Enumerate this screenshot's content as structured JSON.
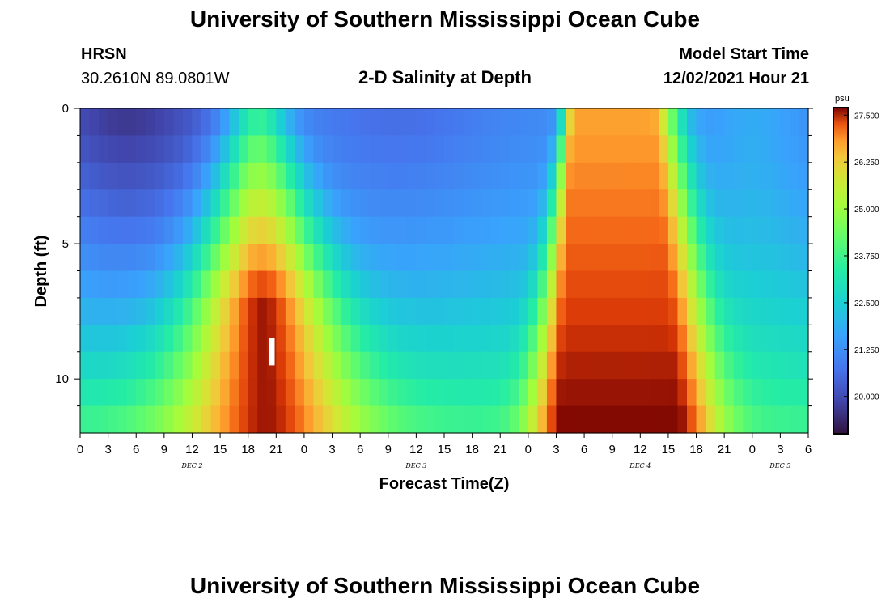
{
  "header": {
    "title": "University of Southern Mississippi Ocean Cube",
    "station": "HRSN",
    "coords": "30.2610N  89.0801W",
    "subtitle": "2-D Salinity at Depth",
    "start_label": "Model Start Time",
    "start_value": "12/02/2021 Hour 21"
  },
  "footer": {
    "title": "University of Southern Mississippi Ocean Cube"
  },
  "chart_data": {
    "type": "heatmap",
    "title": "2-D Salinity at Depth",
    "xlabel": "Forecast Time(Z)",
    "ylabel": "Depth (ft)",
    "x_start_hour": 0,
    "x_end_hour": 78,
    "x_step_hours": 3,
    "x_tick_labels": [
      "0",
      "3",
      "6",
      "9",
      "12",
      "15",
      "18",
      "21",
      "0",
      "3",
      "6",
      "9",
      "12",
      "15",
      "18",
      "21",
      "0",
      "3",
      "6",
      "9",
      "12",
      "15",
      "18",
      "21",
      "0",
      "3",
      "6"
    ],
    "day_labels": [
      {
        "label": "DEC 2",
        "hour": 12
      },
      {
        "label": "DEC 3",
        "hour": 36
      },
      {
        "label": "DEC 4",
        "hour": 60
      },
      {
        "label": "DEC 5",
        "hour": 75
      }
    ],
    "ylim": [
      0,
      12
    ],
    "y_tick_labels": [
      "0",
      "5",
      "10"
    ],
    "y_ticks": [
      0,
      5,
      10
    ],
    "y_minor_ticks": [
      1,
      2,
      3,
      4,
      6,
      7,
      8,
      9,
      11
    ],
    "depth_levels": [
      0.5,
      1.5,
      2.5,
      3.5,
      4.5,
      5.5,
      6.5,
      7.5,
      8.5,
      9.5,
      10.5,
      11.5
    ],
    "colorbar": {
      "unit": "psu",
      "min": 19.0,
      "max": 27.7,
      "ticks": [
        "27.500",
        "26.250",
        "25.000",
        "23.750",
        "22.500",
        "21.250",
        "20.000"
      ],
      "tick_values": [
        27.5,
        26.25,
        25.0,
        23.75,
        22.5,
        21.25,
        20.0
      ]
    },
    "model_start_marker": {
      "hour": 20.5,
      "depth_from": 8.5,
      "depth_to": 9.5
    },
    "salinity_profile": {
      "description_free": true,
      "surface_low": 19.3,
      "background_mid": 21.5,
      "plume1_center_hour": 20,
      "plume1_peak": 27.6,
      "plume2_center_hour": 57,
      "plume2_peak": 27.7,
      "bottom_value": 23.5
    }
  }
}
